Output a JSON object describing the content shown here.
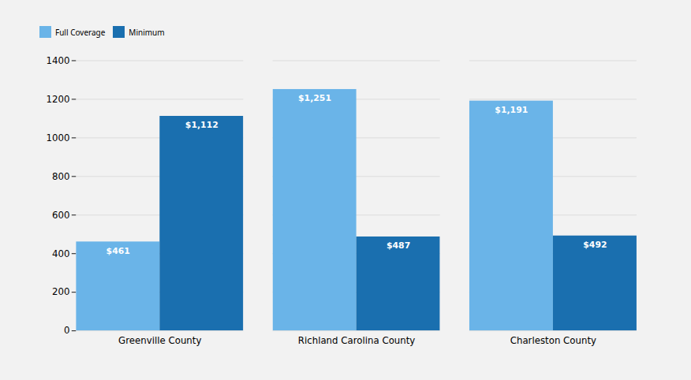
{
  "chart_data": {
    "type": "bar",
    "categories": [
      "Greenville County",
      "Richland Carolina County",
      "Charleston County"
    ],
    "series": [
      {
        "name": "Full Coverage",
        "color": "#6ab4e8",
        "values": [
          461,
          1251,
          1191
        ],
        "value_labels": [
          "$461",
          "$1,251",
          "$1,191"
        ]
      },
      {
        "name": "Minimum",
        "color": "#1a6faf",
        "values": [
          1112,
          487,
          492
        ],
        "value_labels": [
          "$1,112",
          "$487",
          "$492"
        ]
      }
    ],
    "ylim": [
      0,
      1400
    ],
    "yticks": [
      0,
      200,
      400,
      600,
      800,
      1000,
      1200,
      1400
    ],
    "grid": true,
    "legend": "upper left",
    "data_labels": true
  }
}
